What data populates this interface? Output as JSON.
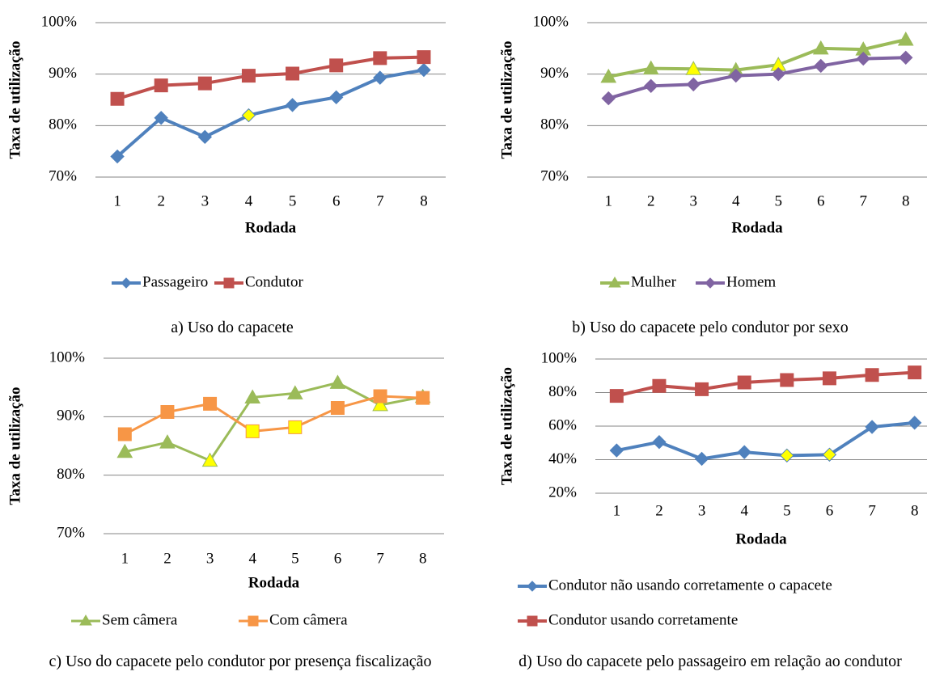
{
  "chart_data": [
    {
      "type": "line",
      "caption": "a) Uso do capacete",
      "xlabel": "Rodada",
      "ylabel": "Taxa de utilização",
      "categories": [
        "1",
        "2",
        "3",
        "4",
        "5",
        "6",
        "7",
        "8"
      ],
      "ylim": [
        70,
        100
      ],
      "yticks": [
        {
          "value": 70,
          "label": "70%"
        },
        {
          "value": 80,
          "label": "80%"
        },
        {
          "value": 90,
          "label": "90%"
        },
        {
          "value": 100,
          "label": "100%"
        }
      ],
      "grid": true,
      "highlight_color": "#ffff00",
      "series": [
        {
          "name": "Passageiro",
          "color": "#4f81bd",
          "marker": "diamond",
          "values": [
            74,
            81.5,
            77.8,
            82,
            84,
            85.5,
            89.3,
            90.8
          ],
          "highlight": [
            3
          ]
        },
        {
          "name": "Condutor",
          "color": "#c0504d",
          "marker": "square",
          "values": [
            85.2,
            87.8,
            88.2,
            89.7,
            90.1,
            91.7,
            93.1,
            93.3
          ],
          "highlight": []
        }
      ]
    },
    {
      "type": "line",
      "caption": "b) Uso do capacete pelo condutor por sexo",
      "xlabel": "Rodada",
      "ylabel": "Taxa de utilização",
      "categories": [
        "1",
        "2",
        "3",
        "4",
        "5",
        "6",
        "7",
        "8"
      ],
      "ylim": [
        70,
        100
      ],
      "yticks": [
        {
          "value": 70,
          "label": "70%"
        },
        {
          "value": 80,
          "label": "80%"
        },
        {
          "value": 90,
          "label": "90%"
        },
        {
          "value": 100,
          "label": "100%"
        }
      ],
      "grid": true,
      "highlight_color": "#ffff00",
      "series": [
        {
          "name": "Mulher",
          "color": "#9bbb59",
          "marker": "triangle",
          "values": [
            89.5,
            91.1,
            91,
            90.8,
            91.8,
            95,
            94.8,
            96.7
          ],
          "highlight": [
            2,
            4
          ]
        },
        {
          "name": "Homem",
          "color": "#8064a2",
          "marker": "diamond",
          "values": [
            85.3,
            87.7,
            88,
            89.7,
            90,
            91.6,
            93,
            93.2
          ],
          "highlight": []
        }
      ]
    },
    {
      "type": "line",
      "caption": "c) Uso do capacete pelo condutor por presença fiscalização",
      "xlabel": "Rodada",
      "ylabel": "Taxa de utilização",
      "categories": [
        "1",
        "2",
        "3",
        "4",
        "5",
        "6",
        "7",
        "8"
      ],
      "ylim": [
        70,
        100
      ],
      "yticks": [
        {
          "value": 70,
          "label": "70%"
        },
        {
          "value": 80,
          "label": "80%"
        },
        {
          "value": 90,
          "label": "90%"
        },
        {
          "value": 100,
          "label": "100%"
        }
      ],
      "grid": true,
      "highlight_color": "#ffff00",
      "series": [
        {
          "name": "Sem câmera",
          "color": "#9bbb59",
          "marker": "triangle",
          "values": [
            84,
            85.6,
            82.5,
            93.3,
            94,
            95.8,
            92,
            93.4
          ],
          "highlight": [
            2,
            6
          ]
        },
        {
          "name": "Com câmera",
          "color": "#f79646",
          "marker": "square",
          "values": [
            87,
            90.8,
            92.2,
            87.5,
            88.2,
            91.5,
            93.5,
            93.2
          ],
          "highlight": [
            3,
            4
          ]
        }
      ]
    },
    {
      "type": "line",
      "caption": "d) Uso do capacete pelo passageiro em relação ao condutor",
      "xlabel": "Rodada",
      "ylabel": "Taxa de utilização",
      "categories": [
        "1",
        "2",
        "3",
        "4",
        "5",
        "6",
        "7",
        "8"
      ],
      "ylim": [
        20,
        100
      ],
      "yticks": [
        {
          "value": 20,
          "label": "20%"
        },
        {
          "value": 40,
          "label": "40%"
        },
        {
          "value": 60,
          "label": "60%"
        },
        {
          "value": 80,
          "label": "80%"
        },
        {
          "value": 100,
          "label": "100%"
        }
      ],
      "grid": true,
      "highlight_color": "#ffff00",
      "series": [
        {
          "name": "Condutor não usando corretamente o capacete",
          "color": "#4f81bd",
          "marker": "diamond",
          "values": [
            45.5,
            50.5,
            40.5,
            44.5,
            42.5,
            43,
            59.5,
            62
          ],
          "highlight": [
            4,
            5
          ]
        },
        {
          "name": "Condutor usando corretamente",
          "color": "#c0504d",
          "marker": "square",
          "values": [
            78,
            84,
            82,
            86,
            87.5,
            88.5,
            90.5,
            92
          ],
          "highlight": []
        }
      ]
    }
  ]
}
